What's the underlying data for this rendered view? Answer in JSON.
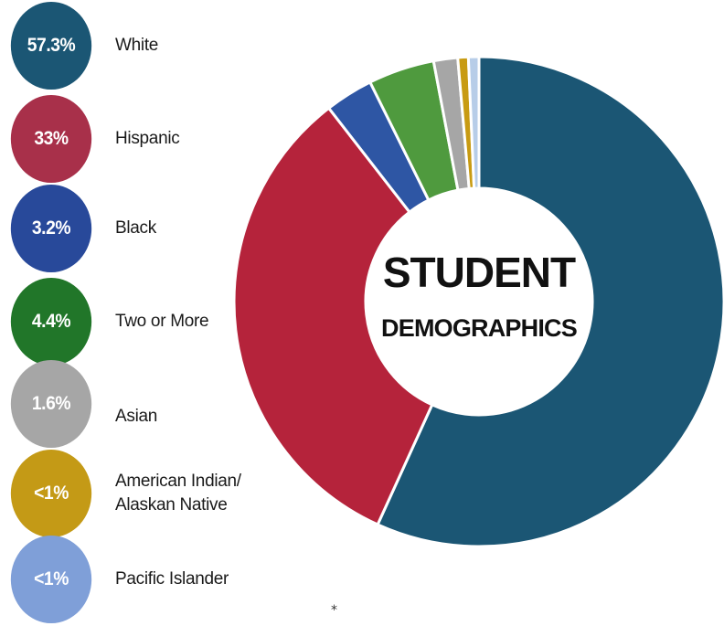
{
  "chart_data": {
    "type": "pie",
    "title": "STUDENT",
    "subtitle": "DEMOGRAPHICS",
    "legend_position": "left",
    "slices": [
      {
        "label": "White",
        "display_value": "57.3%",
        "value": 57.3,
        "color": "#1b5674",
        "label_color": "#1b5674"
      },
      {
        "label": "Hispanic",
        "display_value": "33%",
        "value": 33,
        "color": "#b5233b",
        "label_color": "#a8304a"
      },
      {
        "label": "Black",
        "display_value": "3.2%",
        "value": 3.2,
        "color": "#2e56a4",
        "label_color": "#28499a"
      },
      {
        "label": "Two or More",
        "display_value": "4.4%",
        "value": 4.4,
        "color": "#4f9a3e",
        "label_color": "#217629"
      },
      {
        "label": "Asian",
        "display_value": "1.6%",
        "value": 1.6,
        "color": "#a6a6a6",
        "label_color": "#a6a6a6"
      },
      {
        "label": "American Indian/\nAlaskan Native",
        "display_value": "<1%",
        "value": 0.7,
        "color": "#c89b12",
        "label_color": "#c49a16"
      },
      {
        "label": "Pacific Islander",
        "display_value": "<1%",
        "value": 0.7,
        "color": "#b7cde8",
        "label_color": "#7f9fd8"
      }
    ]
  },
  "footnote": "*"
}
